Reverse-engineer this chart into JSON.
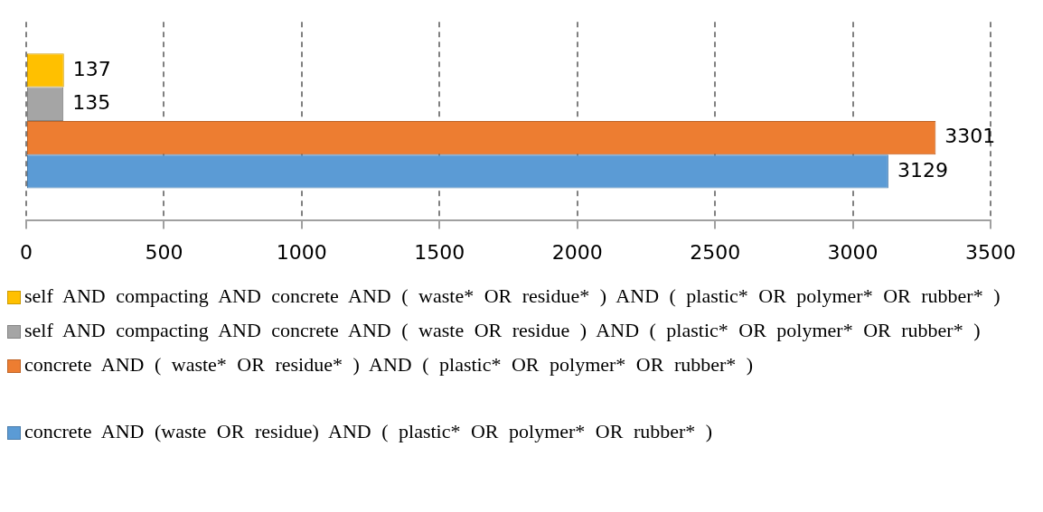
{
  "chart_data": {
    "type": "bar",
    "orientation": "horizontal",
    "categories": [
      null
    ],
    "series": [
      {
        "name": "self AND compacting AND concrete AND ( waste* OR residue* ) AND ( plastic* OR polymer* OR rubber* )",
        "color": "#ffc000",
        "values": [
          137
        ]
      },
      {
        "name": "self AND compacting AND concrete AND ( waste OR residue ) AND ( plastic* OR polymer* OR rubber* )",
        "color": "#a5a5a5",
        "values": [
          135
        ]
      },
      {
        "name": "concrete AND ( waste* OR residue* ) AND ( plastic* OR polymer* OR rubber* )",
        "color": "#ed7d31",
        "values": [
          3301
        ]
      },
      {
        "name": "concrete AND (waste OR residue) AND ( plastic* OR polymer* OR rubber* )",
        "color": "#5b9bd5",
        "values": [
          3129
        ]
      }
    ],
    "xlim": [
      0,
      3500
    ],
    "xticks": [
      0,
      500,
      1000,
      1500,
      2000,
      2500,
      3000,
      3500
    ],
    "grid": "x",
    "legend": "bottom",
    "data_labels": true
  }
}
